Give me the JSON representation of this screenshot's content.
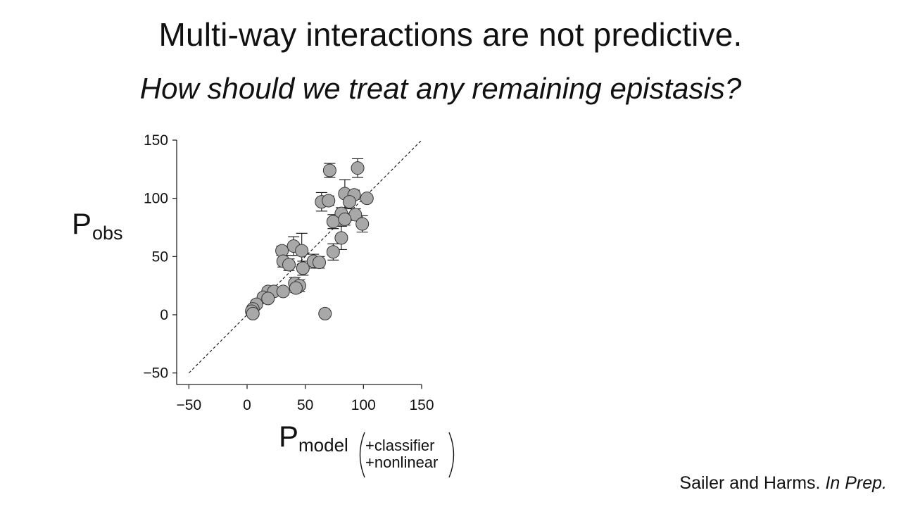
{
  "slide": {
    "title": "Multi-way interactions are not predictive.",
    "subtitle": "How should we treat any remaining epistasis?",
    "citation_authors": "Sailer and Harms. ",
    "citation_status": "In Prep."
  },
  "chart_data": {
    "type": "scatter",
    "ylabel_main": "P",
    "ylabel_sub": "obs",
    "xlabel_main": "P",
    "xlabel_sub": "model",
    "xlabel_paren_line1": "+classifier",
    "xlabel_paren_line2": "+nonlinear",
    "xlim": [
      -50,
      150
    ],
    "ylim": [
      -60,
      150
    ],
    "xticks": [
      -50,
      0,
      50,
      100,
      150
    ],
    "yticks": [
      -50,
      0,
      50,
      100,
      150
    ],
    "xtick_labels": [
      "−50",
      "0",
      "50",
      "100",
      "150"
    ],
    "ytick_labels": [
      "−50",
      "0",
      "50",
      "100",
      "150"
    ],
    "reference_line": {
      "style": "dashed",
      "x": [
        -50,
        150
      ],
      "y": [
        -50,
        150
      ]
    },
    "marker_color": "#a8a8a8",
    "marker_edge_color": "#333333",
    "points": [
      {
        "x": 71,
        "y": 124,
        "err": 6
      },
      {
        "x": 95,
        "y": 126,
        "err": 8
      },
      {
        "x": 64,
        "y": 97,
        "err": 8
      },
      {
        "x": 70,
        "y": 98,
        "err": 4
      },
      {
        "x": 84,
        "y": 104,
        "err": 12
      },
      {
        "x": 92,
        "y": 103,
        "err": 4
      },
      {
        "x": 88,
        "y": 97,
        "err": 6
      },
      {
        "x": 103,
        "y": 100,
        "err": 3
      },
      {
        "x": 81,
        "y": 87,
        "err": 5
      },
      {
        "x": 93,
        "y": 86,
        "err": 5
      },
      {
        "x": 74,
        "y": 80,
        "err": 6
      },
      {
        "x": 84,
        "y": 82,
        "err": 5
      },
      {
        "x": 99,
        "y": 78,
        "err": 7
      },
      {
        "x": 81,
        "y": 66,
        "err": 10
      },
      {
        "x": 74,
        "y": 54,
        "err": 7
      },
      {
        "x": 40,
        "y": 59,
        "err": 8
      },
      {
        "x": 30,
        "y": 55,
        "err": 4
      },
      {
        "x": 47,
        "y": 55,
        "err": 15
      },
      {
        "x": 31,
        "y": 46,
        "err": 5
      },
      {
        "x": 36,
        "y": 43,
        "err": 5
      },
      {
        "x": 57,
        "y": 46,
        "err": 6
      },
      {
        "x": 62,
        "y": 45,
        "err": 5
      },
      {
        "x": 48,
        "y": 40,
        "err": 6
      },
      {
        "x": 41,
        "y": 27,
        "err": 5
      },
      {
        "x": 45,
        "y": 25,
        "err": 5
      },
      {
        "x": 42,
        "y": 23,
        "err": 4
      },
      {
        "x": 18,
        "y": 20,
        "err": 3
      },
      {
        "x": 23,
        "y": 20,
        "err": 3
      },
      {
        "x": 31,
        "y": 20,
        "err": 3
      },
      {
        "x": 14,
        "y": 15,
        "err": 3
      },
      {
        "x": 18,
        "y": 14,
        "err": 3
      },
      {
        "x": 8,
        "y": 9,
        "err": 2
      },
      {
        "x": 5,
        "y": 5,
        "err": 2
      },
      {
        "x": 4,
        "y": 3,
        "err": 2
      },
      {
        "x": 5,
        "y": 1,
        "err": 2
      },
      {
        "x": 67,
        "y": 1,
        "err": 1
      }
    ]
  }
}
